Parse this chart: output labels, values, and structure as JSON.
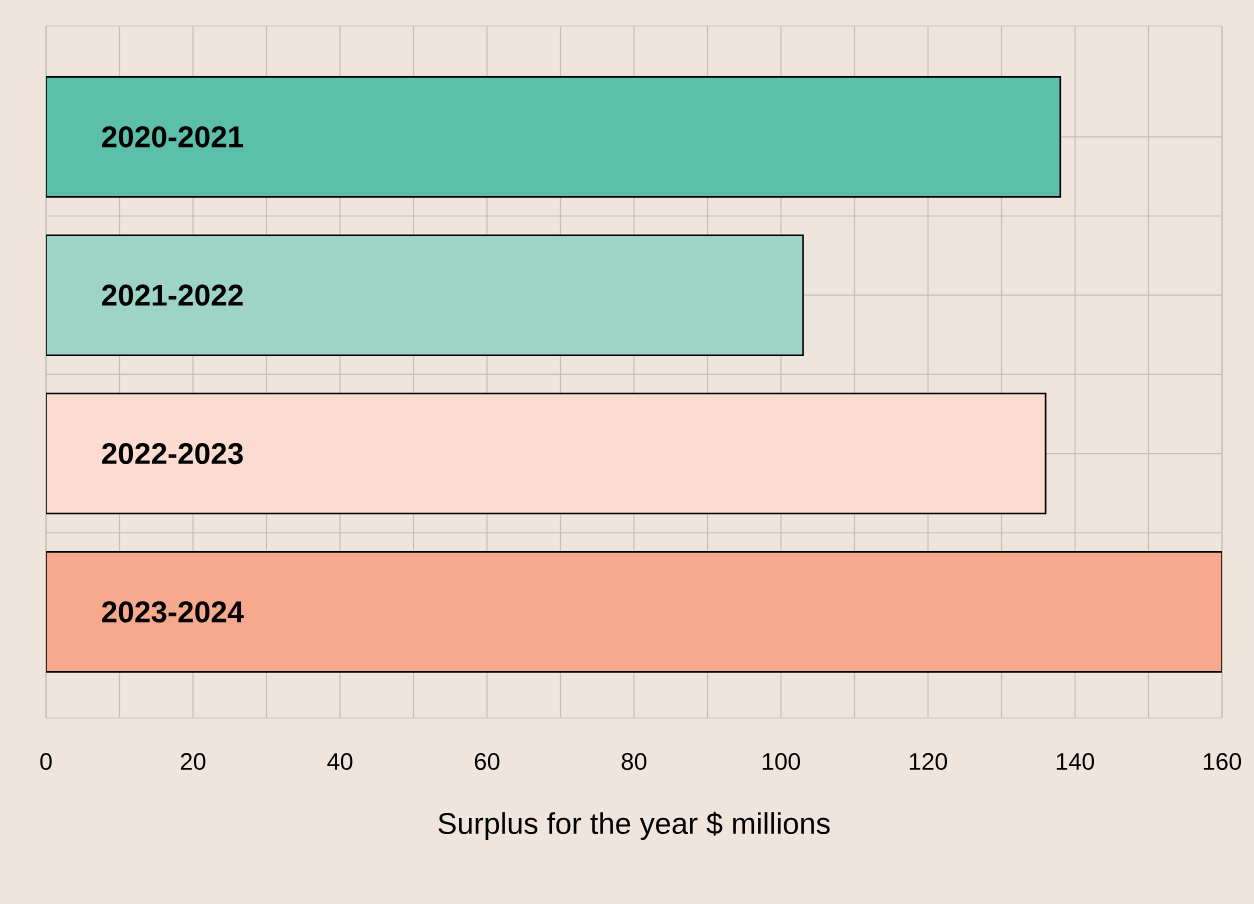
{
  "chart_data": {
    "type": "bar",
    "orientation": "horizontal",
    "xlabel": "Surplus for the year $ millions",
    "categories": [
      "2020-2021",
      "2021-2022",
      "2022-2023",
      "2023-2024"
    ],
    "values": [
      138,
      103,
      136,
      160
    ],
    "colors": [
      "#5bbfa9",
      "#9dd4c5",
      "#fcdcd0",
      "#f7a98d"
    ],
    "xlim": [
      0,
      160
    ],
    "xticks": [
      0,
      {
        "value": 10,
        "label": null
      },
      20,
      {
        "value": 30,
        "label": null
      },
      40,
      {
        "value": 50,
        "label": null
      },
      60,
      {
        "value": 70,
        "label": null
      },
      80,
      {
        "value": 90,
        "label": null
      },
      100,
      {
        "value": 110,
        "label": null
      },
      120,
      {
        "value": 130,
        "label": null
      },
      140,
      {
        "value": 150,
        "label": null
      },
      160
    ],
    "grid": true
  }
}
